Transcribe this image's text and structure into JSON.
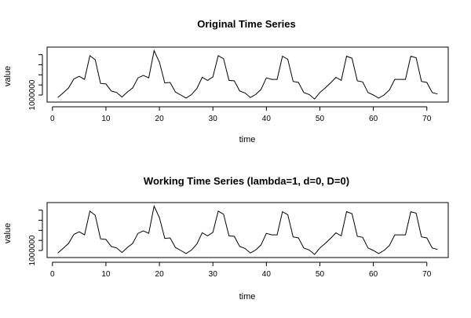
{
  "chart_data": [
    {
      "type": "line",
      "title": "Original Time Series",
      "xlabel": "time",
      "ylabel": "value",
      "xlim": [
        -1,
        74
      ],
      "ylim": [
        860000,
        1950000
      ],
      "x_ticks": [
        0,
        10,
        20,
        30,
        40,
        50,
        60,
        70
      ],
      "y_ticks": [
        1000000,
        1200000,
        1400000,
        1600000,
        1800000
      ],
      "y_tick_labels": [
        "1000000",
        "",
        "",
        "",
        ""
      ],
      "grid": false,
      "series": [
        {
          "x": [
            1,
            2,
            3,
            4,
            5,
            6,
            7,
            8,
            9,
            10,
            11,
            12,
            13,
            14,
            15,
            16,
            17,
            18,
            19,
            20,
            21,
            22,
            23,
            24,
            25,
            26,
            27,
            28,
            29,
            30,
            31,
            32,
            33,
            34,
            35,
            36,
            37,
            38,
            39,
            40,
            41,
            42,
            43,
            44,
            45,
            46,
            47,
            48,
            49,
            50,
            51,
            52,
            53,
            54,
            55,
            56,
            57,
            58,
            59,
            60,
            61,
            62,
            63,
            64,
            65,
            66,
            67,
            68,
            69,
            70,
            71,
            72
          ],
          "values": [
            950000,
            1040000,
            1140000,
            1320000,
            1370000,
            1310000,
            1780000,
            1700000,
            1230000,
            1220000,
            1080000,
            1050000,
            960000,
            1060000,
            1140000,
            1340000,
            1390000,
            1340000,
            1880000,
            1650000,
            1240000,
            1250000,
            1060000,
            1000000,
            940000,
            1010000,
            1130000,
            1350000,
            1290000,
            1360000,
            1780000,
            1720000,
            1290000,
            1280000,
            1080000,
            1040000,
            950000,
            1010000,
            1110000,
            1340000,
            1310000,
            1310000,
            1770000,
            1710000,
            1270000,
            1250000,
            1050000,
            1010000,
            920000,
            1050000,
            1140000,
            1240000,
            1350000,
            1290000,
            1770000,
            1730000,
            1280000,
            1260000,
            1050000,
            1000000,
            940000,
            1000000,
            1100000,
            1310000,
            1310000,
            1310000,
            1770000,
            1740000,
            1270000,
            1250000,
            1050000,
            1020000
          ]
        }
      ]
    },
    {
      "type": "line",
      "title": "Working Time Series (lambda=1, d=0, D=0)",
      "xlabel": "time",
      "ylabel": "value",
      "xlim": [
        -1,
        74
      ],
      "ylim": [
        860000,
        1950000
      ],
      "x_ticks": [
        0,
        10,
        20,
        30,
        40,
        50,
        60,
        70
      ],
      "y_ticks": [
        1000000,
        1200000,
        1400000,
        1600000,
        1800000
      ],
      "y_tick_labels": [
        "1000000",
        "",
        "",
        "",
        ""
      ],
      "grid": false,
      "series": [
        {
          "x": [
            1,
            2,
            3,
            4,
            5,
            6,
            7,
            8,
            9,
            10,
            11,
            12,
            13,
            14,
            15,
            16,
            17,
            18,
            19,
            20,
            21,
            22,
            23,
            24,
            25,
            26,
            27,
            28,
            29,
            30,
            31,
            32,
            33,
            34,
            35,
            36,
            37,
            38,
            39,
            40,
            41,
            42,
            43,
            44,
            45,
            46,
            47,
            48,
            49,
            50,
            51,
            52,
            53,
            54,
            55,
            56,
            57,
            58,
            59,
            60,
            61,
            62,
            63,
            64,
            65,
            66,
            67,
            68,
            69,
            70,
            71,
            72
          ],
          "values": [
            950000,
            1040000,
            1140000,
            1320000,
            1370000,
            1310000,
            1780000,
            1700000,
            1230000,
            1220000,
            1080000,
            1050000,
            960000,
            1060000,
            1140000,
            1340000,
            1390000,
            1340000,
            1880000,
            1650000,
            1240000,
            1250000,
            1060000,
            1000000,
            940000,
            1010000,
            1130000,
            1350000,
            1290000,
            1360000,
            1780000,
            1720000,
            1290000,
            1280000,
            1080000,
            1040000,
            950000,
            1010000,
            1110000,
            1340000,
            1310000,
            1310000,
            1770000,
            1710000,
            1270000,
            1250000,
            1050000,
            1010000,
            920000,
            1050000,
            1140000,
            1240000,
            1350000,
            1290000,
            1770000,
            1730000,
            1280000,
            1260000,
            1050000,
            1000000,
            940000,
            1000000,
            1100000,
            1310000,
            1310000,
            1310000,
            1770000,
            1740000,
            1270000,
            1250000,
            1050000,
            1020000
          ]
        }
      ]
    }
  ]
}
